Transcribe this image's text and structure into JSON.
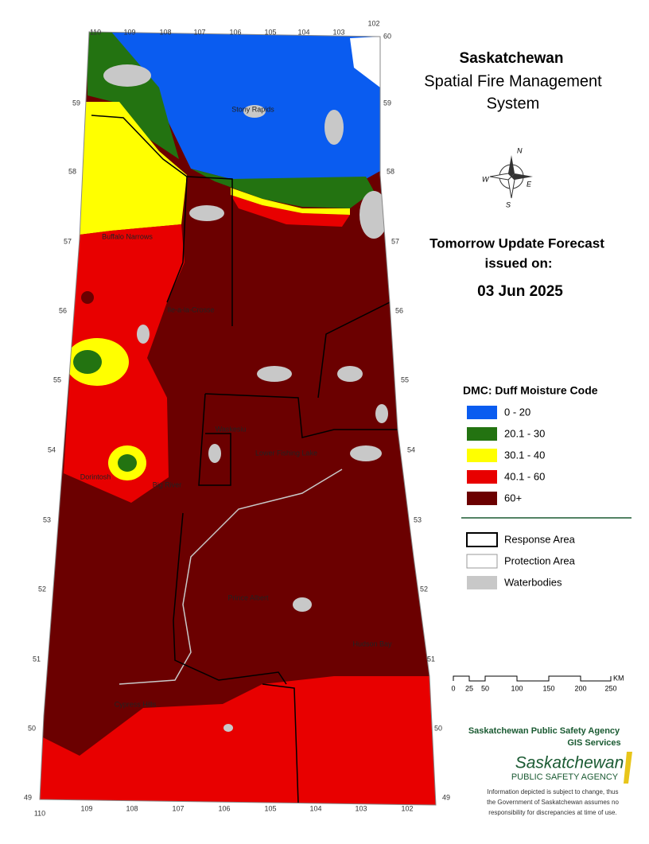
{
  "header": {
    "title": "Saskatchewan",
    "subtitle_lines": [
      "Spatial Fire Management",
      "System"
    ]
  },
  "forecast": {
    "heading_lines": [
      "Tomorrow Update Forecast",
      "issued on:"
    ],
    "date": "03 Jun 2025"
  },
  "compass": {
    "north": "N",
    "east": "E",
    "south": "S",
    "west": "W"
  },
  "legend": {
    "title": "DMC: Duff Moisture Code",
    "classes": [
      {
        "label": "0 - 20",
        "color": "#0a5cf0"
      },
      {
        "label": "20.1 - 30",
        "color": "#237311"
      },
      {
        "label": "30.1 - 40",
        "color": "#ffff00"
      },
      {
        "label": "40.1 - 60",
        "color": "#e80000"
      },
      {
        "label": "60+",
        "color": "#6b0000"
      }
    ],
    "boundaries": [
      "Response Area",
      "Protection Area",
      "Waterbodies"
    ]
  },
  "scale_bar": {
    "labels": [
      "0",
      "25",
      "50",
      "100",
      "150",
      "200",
      "250"
    ],
    "unit": "KM"
  },
  "longitudes": [
    "110",
    "109",
    "108",
    "107",
    "106",
    "105",
    "104",
    "103",
    "102"
  ],
  "latitudes": [
    "60",
    "59",
    "58",
    "57",
    "56",
    "55",
    "54",
    "53",
    "52",
    "51",
    "50",
    "49"
  ],
  "places": [
    "Stony Rapids",
    "Buffalo Narrows",
    "Ile-a-la-Crosse",
    "Waskesiu",
    "Lower Fishing Lake",
    "Dorintosh",
    "Big River",
    "Prince Albert",
    "Hudson Bay",
    "Cypress Hills"
  ],
  "footer": {
    "agency": "Saskatchewan Public Safety Agency",
    "unit": "GIS  Services",
    "logo_name": "Saskatchewan",
    "logo_sub": "PUBLIC SAFETY AGENCY",
    "disclaimer_lines": [
      "Information depicted is subject to change, thus",
      "the Government of Saskatchewan assumes no",
      "responsibility for discrepancies at time of use."
    ]
  }
}
